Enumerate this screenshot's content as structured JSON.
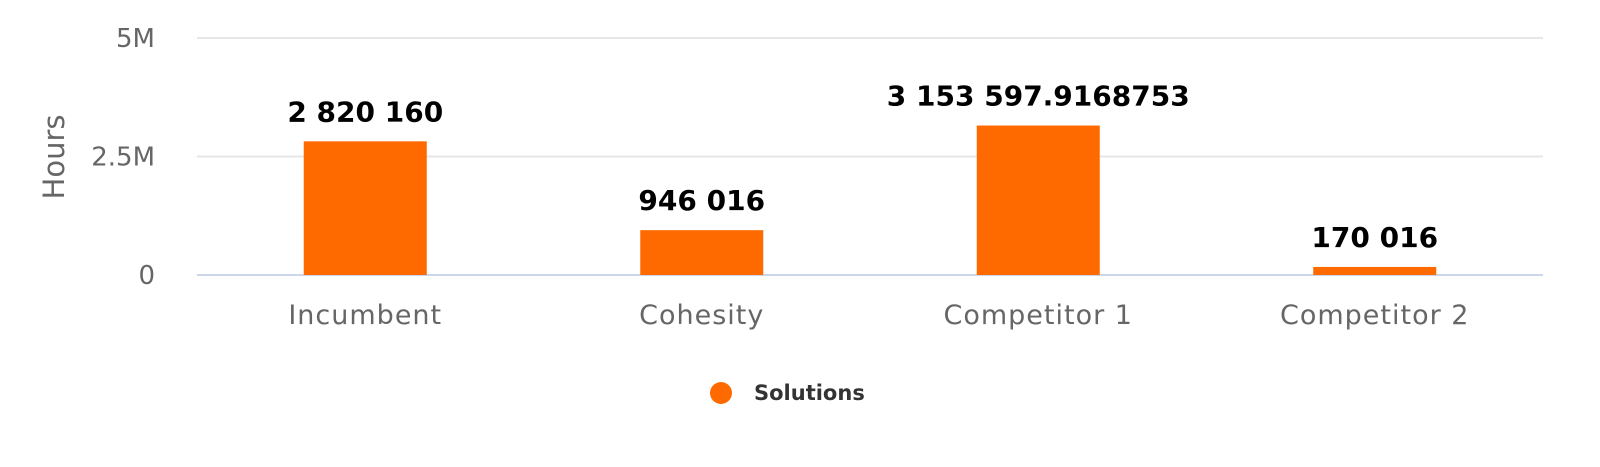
{
  "chart_data": {
    "type": "bar",
    "ylabel": "Hours",
    "xlabel": "",
    "ylim": [
      0,
      5000000
    ],
    "y_ticks": [
      {
        "value": 0,
        "label": "0"
      },
      {
        "value": 2500000,
        "label": "2.5M"
      },
      {
        "value": 5000000,
        "label": "5M"
      }
    ],
    "grid": true,
    "legend_position": "bottom-center",
    "categories": [
      "Incumbent",
      "Cohesity",
      "Competitor 1",
      "Competitor 2"
    ],
    "series": [
      {
        "name": "Solutions",
        "color": "#ff6a00",
        "values": [
          2820160,
          946016,
          3153597.9168753,
          170016
        ],
        "data_labels": [
          "2 820 160",
          "946 016",
          "3 153 597.9168753",
          "170 016"
        ]
      }
    ]
  }
}
